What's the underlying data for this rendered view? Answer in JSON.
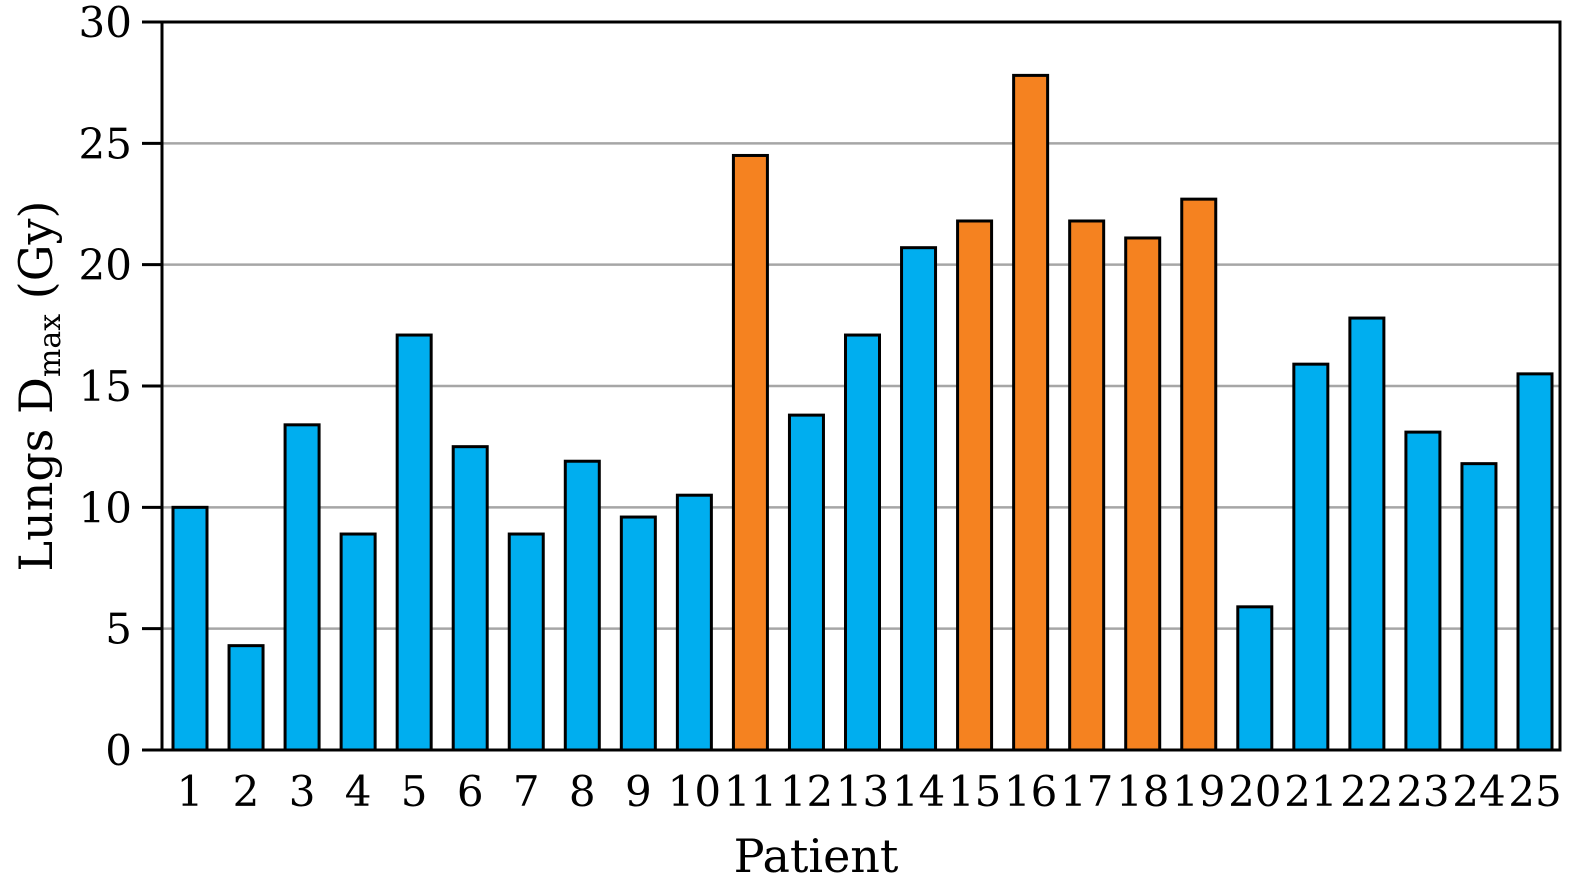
{
  "chart_data": {
    "type": "bar",
    "xlabel": "Patient",
    "ylabel": {
      "prefix": "Lungs D",
      "subscript": "max",
      "suffix": " (Gy)"
    },
    "ylim": [
      0,
      30
    ],
    "yticks": [
      0,
      5,
      10,
      15,
      20,
      25,
      30
    ],
    "grid": "horizontal",
    "categories": [
      "1",
      "2",
      "3",
      "4",
      "5",
      "6",
      "7",
      "8",
      "9",
      "10",
      "11",
      "12",
      "13",
      "14",
      "15",
      "16",
      "17",
      "18",
      "19",
      "20",
      "21",
      "22",
      "23",
      "24",
      "25"
    ],
    "values": [
      10.0,
      4.3,
      13.4,
      8.9,
      17.1,
      12.5,
      8.9,
      11.9,
      9.6,
      10.5,
      24.5,
      13.8,
      17.1,
      20.7,
      21.8,
      27.8,
      21.8,
      21.1,
      22.7,
      5.9,
      15.9,
      17.8,
      13.1,
      11.8,
      15.5
    ],
    "highlighted": [
      "11",
      "15",
      "16",
      "17",
      "18",
      "19"
    ],
    "colors": {
      "default": "#00aeef",
      "highlight": "#f58220",
      "grid": "#a6a6a6"
    }
  }
}
